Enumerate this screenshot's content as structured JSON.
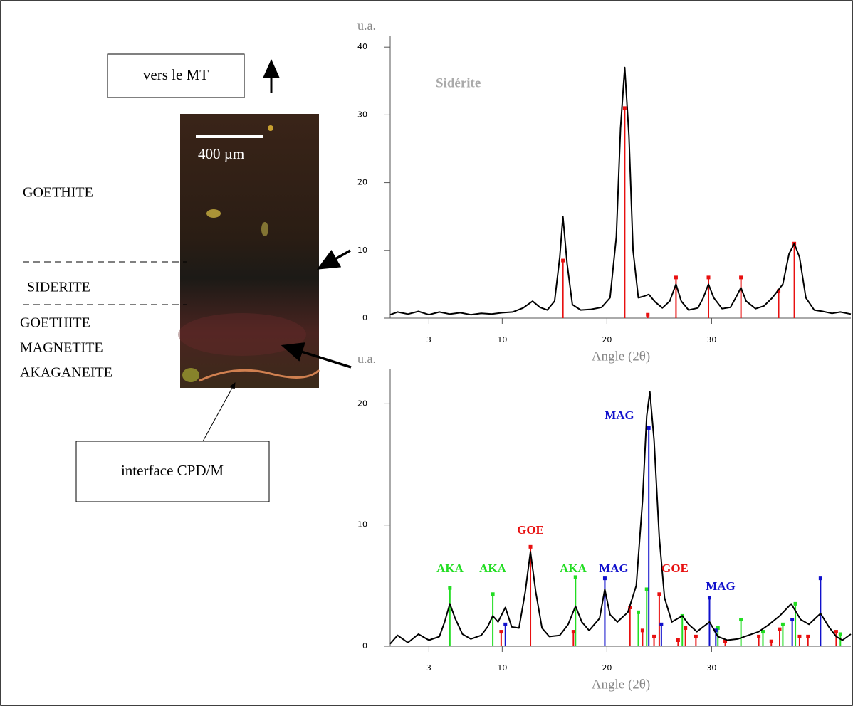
{
  "figure": {
    "direction_label": "vers le MT",
    "scale_label": "400 µm",
    "layer_1": "GOETHITE",
    "layer_2": "SIDERITE",
    "layer_3": [
      "GOETHITE",
      "MAGNETITE",
      "AKAGANEITE"
    ],
    "interface_label": "interface CPD/M"
  },
  "chart_data": [
    {
      "type": "line",
      "title": "Sidérite",
      "y_label": "u.a.",
      "x_label": "Angle (2θ)",
      "xlim": [
        -0.7,
        43.3
      ],
      "ylim": [
        0,
        41.7
      ],
      "xticks": [
        3,
        10,
        20,
        30
      ],
      "yticks": [
        0,
        10,
        20,
        30,
        40
      ],
      "series": [
        {
          "color": "#000000",
          "x": [
            -0.7,
            0,
            1,
            2,
            3,
            4,
            5,
            6,
            7,
            8,
            9,
            10,
            11,
            12,
            12.9,
            13.6,
            14.3,
            15,
            15.5,
            15.8,
            16.2,
            16.7,
            17.5,
            18.5,
            19.5,
            20.3,
            20.9,
            21.3,
            21.7,
            22.1,
            22.5,
            23,
            23.5,
            24,
            24.6,
            25.3,
            26,
            26.6,
            27.1,
            27.8,
            28.7,
            29.2,
            29.7,
            30.2,
            31,
            31.8,
            32.3,
            32.8,
            33.3,
            34.2,
            35,
            35.8,
            36.8,
            37.4,
            37.9,
            38.4,
            39,
            39.8,
            40.6,
            41.5,
            42.3,
            43.3
          ],
          "values": [
            0.5,
            0.9,
            0.6,
            1.0,
            0.5,
            0.9,
            0.6,
            0.8,
            0.5,
            0.7,
            0.6,
            0.8,
            0.9,
            1.5,
            2.5,
            1.6,
            1.2,
            2.5,
            9,
            15,
            8,
            2,
            1.2,
            1.3,
            1.6,
            3,
            12,
            28,
            37,
            27,
            10,
            3,
            3.2,
            3.5,
            2.4,
            1.5,
            2.5,
            5,
            2.5,
            1.2,
            1.5,
            3,
            5,
            3,
            1.4,
            1.6,
            3,
            4.5,
            2.5,
            1.4,
            1.8,
            3,
            5,
            9.5,
            11,
            9,
            3,
            1.2,
            1.0,
            0.7,
            0.9,
            0.6
          ]
        }
      ],
      "peaks": [
        {
          "color": "#e81010",
          "x": [
            15.8,
            21.7,
            23.9,
            26.6,
            29.7,
            32.8,
            36.4,
            37.9
          ],
          "values": [
            8.5,
            31,
            0.5,
            6,
            6,
            6,
            4,
            11
          ]
        }
      ]
    },
    {
      "type": "line",
      "y_label": "u.a.",
      "x_label": "Angle (2θ)",
      "xlim": [
        -0.7,
        43.3
      ],
      "ylim": [
        0,
        22.9
      ],
      "xticks": [
        3,
        10,
        20,
        30
      ],
      "yticks": [
        0,
        10,
        20
      ],
      "series": [
        {
          "color": "#000000",
          "x": [
            -0.7,
            0,
            1,
            2,
            3,
            4,
            4.5,
            5.0,
            5.5,
            6.2,
            7,
            8,
            8.6,
            9.1,
            9.6,
            10.3,
            10.9,
            11.6,
            12.2,
            12.7,
            13.2,
            13.8,
            14.5,
            15.5,
            16.3,
            17.0,
            17.6,
            18.3,
            19.3,
            19.8,
            20.3,
            21,
            22,
            22.8,
            23.4,
            23.8,
            24.1,
            24.5,
            25,
            25.5,
            26.2,
            27.2,
            27.8,
            28.6,
            29.8,
            30.6,
            31.5,
            32.5,
            33.5,
            34.5,
            35.5,
            36.5,
            37.6,
            38.5,
            39.3,
            40.4,
            41.2,
            41.9,
            42.5,
            43.3
          ],
          "values": [
            0.2,
            0.9,
            0.3,
            1.0,
            0.5,
            0.8,
            2.0,
            3.5,
            2.3,
            1.0,
            0.6,
            0.9,
            1.6,
            2.5,
            2.0,
            3.2,
            1.6,
            1.5,
            4.5,
            7.8,
            4.5,
            1.5,
            0.8,
            0.9,
            1.8,
            3.3,
            2.0,
            1.3,
            2.3,
            4.7,
            2.6,
            2,
            2.8,
            5,
            12,
            19,
            21,
            17,
            9,
            4,
            2,
            2.5,
            1.8,
            1.2,
            2.0,
            0.8,
            0.5,
            0.6,
            0.9,
            1.2,
            1.8,
            2.5,
            3.5,
            2.2,
            1.8,
            2.7,
            1.6,
            0.8,
            0.5,
            1.0
          ]
        }
      ],
      "peaks": [
        {
          "color": "#22dd22",
          "x": [
            5.0,
            9.1,
            17.0,
            23.0,
            23.8,
            27.2,
            30.6,
            32.8,
            34.9,
            36.8,
            38.0,
            42.3
          ],
          "values": [
            4.8,
            4.3,
            5.7,
            2.8,
            4.7,
            2.5,
            1.5,
            2.2,
            1.2,
            1.8,
            3.5,
            1.0
          ]
        },
        {
          "color": "#e81010",
          "x": [
            9.9,
            12.7,
            16.8,
            22.2,
            23.4,
            24.5,
            25.0,
            26.8,
            27.5,
            28.5,
            31.3,
            34.5,
            35.7,
            36.5,
            38.4,
            39.2,
            41.9
          ],
          "values": [
            1.2,
            8.2,
            1.2,
            3.2,
            1.3,
            0.8,
            4.3,
            0.5,
            1.5,
            0.8,
            0.4,
            0.8,
            0.4,
            1.4,
            0.8,
            0.8,
            1.2
          ]
        },
        {
          "color": "#1010cc",
          "x": [
            10.3,
            19.8,
            24.0,
            25.2,
            29.8,
            30.4,
            37.7,
            40.4
          ],
          "values": [
            1.8,
            5.6,
            18,
            1.8,
            4,
            1.3,
            2.2,
            5.6
          ]
        }
      ],
      "annotations": [
        {
          "text": "AKA",
          "color": "#22dd22"
        },
        {
          "text": "AKA",
          "color": "#22dd22"
        },
        {
          "text": "GOE",
          "color": "#e81010"
        },
        {
          "text": "AKA",
          "color": "#22dd22"
        },
        {
          "text": "MAG",
          "color": "#1010cc"
        },
        {
          "text": "MAG",
          "color": "#1010cc"
        },
        {
          "text": "GOE",
          "color": "#e81010"
        },
        {
          "text": "MAG",
          "color": "#1010cc"
        }
      ]
    }
  ]
}
